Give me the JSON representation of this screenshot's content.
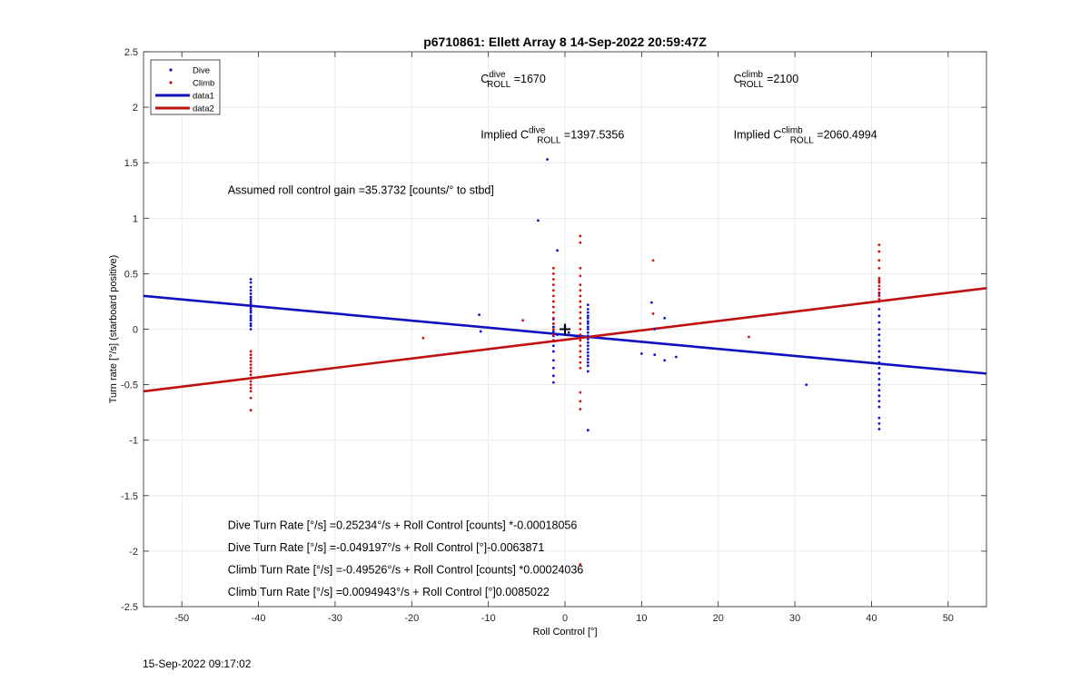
{
  "chart_data": {
    "type": "scatter",
    "title": "p6710861: Ellett Array 8 14-Sep-2022 20:59:47Z",
    "xlabel": "Roll Control [°]",
    "ylabel": "Turn rate [°/s] (starboard positive)",
    "xlim": [
      -55,
      55
    ],
    "ylim": [
      -2.5,
      2.5
    ],
    "xticks": [
      -50,
      -40,
      -30,
      -20,
      -10,
      0,
      10,
      20,
      30,
      40,
      50
    ],
    "yticks": [
      -2.5,
      -2,
      -1.5,
      -1,
      -0.5,
      0,
      0.5,
      1,
      1.5,
      2,
      2.5
    ],
    "xtick_labels": [
      "-50",
      "-40",
      "-30",
      "-20",
      "-10",
      "0",
      "10",
      "20",
      "30",
      "40",
      "50"
    ],
    "ytick_labels": [
      "-2.5",
      "-2",
      "-1.5",
      "-1",
      "-0.5",
      "0",
      "0.5",
      "1",
      "1.5",
      "2",
      "2.5"
    ],
    "grid": true,
    "legend_position": "top-left",
    "series": [
      {
        "name": "Dive",
        "kind": "points",
        "color": "#1010d0",
        "points": [
          [
            -41,
            0.45
          ],
          [
            -41,
            0.42
          ],
          [
            -41,
            0.38
          ],
          [
            -41,
            0.35
          ],
          [
            -41,
            0.32
          ],
          [
            -41,
            0.29
          ],
          [
            -41,
            0.27
          ],
          [
            -41,
            0.25
          ],
          [
            -41,
            0.23
          ],
          [
            -41,
            0.21
          ],
          [
            -41,
            0.19
          ],
          [
            -41,
            0.17
          ],
          [
            -41,
            0.15
          ],
          [
            -41,
            0.12
          ],
          [
            -41,
            0.1
          ],
          [
            -41,
            0.08
          ],
          [
            -41,
            0.05
          ],
          [
            -41,
            0.03
          ],
          [
            -41,
            0.0
          ],
          [
            -11.2,
            0.13
          ],
          [
            -11,
            -0.02
          ],
          [
            -3.5,
            0.98
          ],
          [
            -2.3,
            1.53
          ],
          [
            -1.5,
            -0.48
          ],
          [
            -1.5,
            -0.42
          ],
          [
            -1.5,
            -0.35
          ],
          [
            -1.5,
            -0.28
          ],
          [
            -1.5,
            -0.2
          ],
          [
            -1.5,
            -0.15
          ],
          [
            -1.5,
            -0.1
          ],
          [
            -1.5,
            -0.06
          ],
          [
            -1.5,
            -0.02
          ],
          [
            -1.5,
            0.02
          ],
          [
            -1.5,
            0.05
          ],
          [
            -1.5,
            0.09
          ],
          [
            -1,
            0.71
          ],
          [
            -1,
            -0.05
          ],
          [
            0,
            0.02
          ],
          [
            0.5,
            -0.03
          ],
          [
            3,
            0.22
          ],
          [
            3,
            0.18
          ],
          [
            3,
            0.15
          ],
          [
            3,
            0.12
          ],
          [
            3,
            0.1
          ],
          [
            3,
            0.07
          ],
          [
            3,
            0.05
          ],
          [
            3,
            0.02
          ],
          [
            3,
            0.0
          ],
          [
            3,
            -0.03
          ],
          [
            3,
            -0.06
          ],
          [
            3,
            -0.09
          ],
          [
            3,
            -0.12
          ],
          [
            3,
            -0.15
          ],
          [
            3,
            -0.18
          ],
          [
            3,
            -0.21
          ],
          [
            3,
            -0.24
          ],
          [
            3,
            -0.27
          ],
          [
            3,
            -0.3
          ],
          [
            3,
            -0.33
          ],
          [
            3,
            -0.38
          ],
          [
            3,
            -0.91
          ],
          [
            10,
            -0.22
          ],
          [
            11.3,
            0.24
          ],
          [
            11.7,
            0.0
          ],
          [
            11.7,
            -0.23
          ],
          [
            13,
            0.1
          ],
          [
            13,
            -0.28
          ],
          [
            14.5,
            -0.25
          ],
          [
            31.5,
            -0.5
          ],
          [
            41,
            0.32
          ],
          [
            41,
            0.25
          ],
          [
            41,
            0.18
          ],
          [
            41,
            0.12
          ],
          [
            41,
            0.06
          ],
          [
            41,
            0.0
          ],
          [
            41,
            -0.05
          ],
          [
            41,
            -0.1
          ],
          [
            41,
            -0.15
          ],
          [
            41,
            -0.2
          ],
          [
            41,
            -0.25
          ],
          [
            41,
            -0.3
          ],
          [
            41,
            -0.35
          ],
          [
            41,
            -0.4
          ],
          [
            41,
            -0.45
          ],
          [
            41,
            -0.5
          ],
          [
            41,
            -0.55
          ],
          [
            41,
            -0.6
          ],
          [
            41,
            -0.65
          ],
          [
            41,
            -0.7
          ],
          [
            41,
            -0.8
          ],
          [
            41,
            -0.85
          ],
          [
            41,
            -0.9
          ]
        ]
      },
      {
        "name": "Climb",
        "kind": "points",
        "color": "#d01010",
        "points": [
          [
            -41,
            -0.2
          ],
          [
            -41,
            -0.23
          ],
          [
            -41,
            -0.26
          ],
          [
            -41,
            -0.29
          ],
          [
            -41,
            -0.32
          ],
          [
            -41,
            -0.35
          ],
          [
            -41,
            -0.38
          ],
          [
            -41,
            -0.41
          ],
          [
            -41,
            -0.44
          ],
          [
            -41,
            -0.47
          ],
          [
            -41,
            -0.5
          ],
          [
            -41,
            -0.53
          ],
          [
            -41,
            -0.56
          ],
          [
            -41,
            -0.62
          ],
          [
            -41,
            -0.73
          ],
          [
            -18.5,
            -0.08
          ],
          [
            -5.5,
            0.08
          ],
          [
            -1.5,
            0.55
          ],
          [
            -1.5,
            0.5
          ],
          [
            -1.5,
            0.45
          ],
          [
            -1.5,
            0.4
          ],
          [
            -1.5,
            0.35
          ],
          [
            -1.5,
            0.3
          ],
          [
            -1.5,
            0.25
          ],
          [
            -1.5,
            0.2
          ],
          [
            -1.5,
            0.15
          ],
          [
            -1.5,
            0.1
          ],
          [
            -1.5,
            0.05
          ],
          [
            -1.5,
            0.0
          ],
          [
            -1.5,
            -0.05
          ],
          [
            -1.5,
            -0.1
          ],
          [
            2,
            0.84
          ],
          [
            2,
            0.78
          ],
          [
            2,
            0.55
          ],
          [
            2,
            0.48
          ],
          [
            2,
            0.4
          ],
          [
            2,
            0.35
          ],
          [
            2,
            0.3
          ],
          [
            2,
            0.25
          ],
          [
            2,
            0.2
          ],
          [
            2,
            0.15
          ],
          [
            2,
            0.1
          ],
          [
            2,
            0.05
          ],
          [
            2,
            0.0
          ],
          [
            2,
            -0.05
          ],
          [
            2,
            -0.1
          ],
          [
            2,
            -0.15
          ],
          [
            2,
            -0.2
          ],
          [
            2,
            -0.25
          ],
          [
            2,
            -0.3
          ],
          [
            2,
            -0.35
          ],
          [
            2,
            -0.57
          ],
          [
            2,
            -0.65
          ],
          [
            2,
            -0.72
          ],
          [
            2,
            -2.12
          ],
          [
            11.5,
            0.62
          ],
          [
            11.5,
            0.14
          ],
          [
            24,
            -0.07
          ],
          [
            41,
            0.76
          ],
          [
            41,
            0.7
          ],
          [
            41,
            0.62
          ],
          [
            41,
            0.55
          ],
          [
            41,
            0.46
          ],
          [
            41,
            0.44
          ],
          [
            41,
            0.42
          ],
          [
            41,
            0.39
          ],
          [
            41,
            0.36
          ],
          [
            41,
            0.33
          ],
          [
            41,
            0.3
          ],
          [
            41,
            0.27
          ],
          [
            41,
            0.25
          ]
        ]
      },
      {
        "name": "data1",
        "kind": "line",
        "color": "#1010c0",
        "x": [
          -55,
          55
        ],
        "y": [
          0.3,
          -0.4
        ]
      },
      {
        "name": "data2",
        "kind": "line",
        "color": "#c01010",
        "x": [
          -55,
          55
        ],
        "y": [
          -0.56,
          0.37
        ]
      }
    ],
    "marker": {
      "x": 0,
      "y": 0,
      "symbol": "+"
    },
    "annotations": [
      {
        "id": "c-dive",
        "x": -11,
        "y": 2.22,
        "prefix": "C",
        "sup": "dive",
        "sub": "ROLL",
        "suffix": " =1670"
      },
      {
        "id": "c-climb",
        "x": 22,
        "y": 2.22,
        "prefix": "C",
        "sup": "climb",
        "sub": "ROLL",
        "suffix": " =2100"
      },
      {
        "id": "implied-dive",
        "x": -11,
        "y": 1.72,
        "prefix": "Implied C",
        "sup": "dive",
        "sub": "ROLL",
        "suffix": " =1397.5356"
      },
      {
        "id": "implied-climb",
        "x": 22,
        "y": 1.72,
        "prefix": "Implied C",
        "sup": "climb",
        "sub": "ROLL",
        "suffix": " =2060.4994"
      },
      {
        "id": "gain",
        "x": -44,
        "y": 1.22,
        "text": "Assumed roll control gain =35.3732 [counts/° to stbd]"
      },
      {
        "id": "eq-dive-counts",
        "x": -44,
        "y": -1.8,
        "text": "Dive Turn Rate [°/s] =0.25234°/s + Roll Control [counts] *-0.00018056"
      },
      {
        "id": "eq-dive-deg",
        "x": -44,
        "y": -2.0,
        "text": "Dive Turn Rate [°/s] =-0.049197°/s + Roll Control [°]-0.0063871"
      },
      {
        "id": "eq-climb-counts",
        "x": -44,
        "y": -2.2,
        "text": "Climb Turn Rate [°/s] =-0.49526°/s + Roll Control [counts] *0.00024036"
      },
      {
        "id": "eq-climb-deg",
        "x": -44,
        "y": -2.4,
        "text": "Climb Turn Rate [°/s] =0.0094943°/s + Roll Control [°]0.0085022"
      }
    ]
  },
  "footer": {
    "timestamp": "15-Sep-2022 09:17:02"
  }
}
